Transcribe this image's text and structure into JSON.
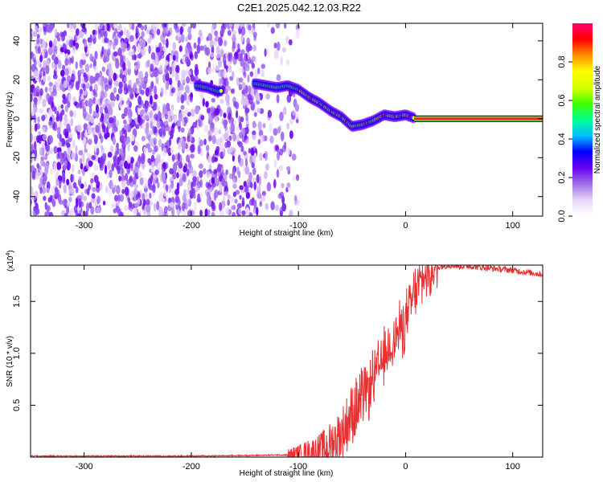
{
  "title": "C2E1.2025.042.12.03.R22",
  "chart_data": [
    {
      "type": "heatmap",
      "xlabel": "Height of straight line (km)",
      "ylabel": "Frequency (Hz)",
      "xlim": [
        -350,
        128
      ],
      "ylim": [
        -50,
        49
      ],
      "x_ticks": [
        -300,
        -200,
        -100,
        0,
        100
      ],
      "x_tick_labels": [
        "-300",
        "-200",
        "-100",
        "0",
        "100"
      ],
      "y_ticks": [
        -40,
        -20,
        0,
        20,
        40
      ],
      "y_tick_labels": [
        "-40",
        "-20",
        "0",
        "20",
        "40"
      ],
      "colorbar": {
        "label": "Normalized spectral amplitude",
        "range": [
          0.0,
          1.0
        ],
        "ticks": [
          0.0,
          0.2,
          0.4,
          0.6,
          0.8
        ],
        "tick_labels": [
          "0.0",
          "0.2",
          "0.4",
          "0.6",
          "0.8"
        ],
        "colors": [
          "#ffffff",
          "#e8d6f8",
          "#a070e8",
          "#6a00f0",
          "#0000ff",
          "#00c0ff",
          "#00ff90",
          "#40ff00",
          "#d8ff00",
          "#ffff00",
          "#ff9000",
          "#ff0000",
          "#ff0070"
        ]
      },
      "ridge": {
        "x": [
          -195,
          -185,
          -175,
          -140,
          -130,
          -120,
          -110,
          -100,
          -90,
          -80,
          -70,
          -60,
          -50,
          -40,
          -30,
          -20,
          -10,
          0,
          10,
          128
        ],
        "y": [
          17,
          16,
          14,
          18,
          17,
          16,
          17,
          15,
          11,
          8,
          4,
          1,
          -4,
          -3,
          -1,
          2,
          1,
          2,
          0,
          0
        ]
      },
      "constant_line": {
        "x_start": 8,
        "x_end": 128,
        "y": 0
      },
      "noise_region_x": [
        -350,
        -100
      ]
    },
    {
      "type": "line",
      "xlabel": "Height of straight line (km)",
      "ylabel": "SNR (10 * v/v)",
      "multiplier_label": "(x10",
      "multiplier_exp": "4",
      "xlim": [
        -350,
        128
      ],
      "ylim": [
        0,
        1.85
      ],
      "x_ticks": [
        -300,
        -200,
        -100,
        0,
        100
      ],
      "x_tick_labels": [
        "-300",
        "-200",
        "-100",
        "0",
        "100"
      ],
      "y_ticks": [
        0.5,
        1.0,
        1.5
      ],
      "y_tick_labels": [
        "0.5",
        "1.0",
        "1.5"
      ],
      "color": "#e83030",
      "series": [
        {
          "name": "SNR",
          "x": [
            -350,
            -300,
            -250,
            -200,
            -150,
            -120,
            -100,
            -80,
            -70,
            -60,
            -50,
            -40,
            -30,
            -20,
            -10,
            0,
            10,
            20,
            30,
            40,
            50,
            60,
            80,
            100,
            128
          ],
          "y": [
            0.01,
            0.01,
            0.01,
            0.01,
            0.015,
            0.02,
            0.02,
            0.05,
            0.12,
            0.22,
            0.42,
            0.55,
            0.75,
            0.95,
            1.15,
            1.3,
            1.62,
            1.78,
            1.83,
            1.85,
            1.84,
            1.84,
            1.82,
            1.8,
            1.76
          ]
        }
      ]
    }
  ]
}
